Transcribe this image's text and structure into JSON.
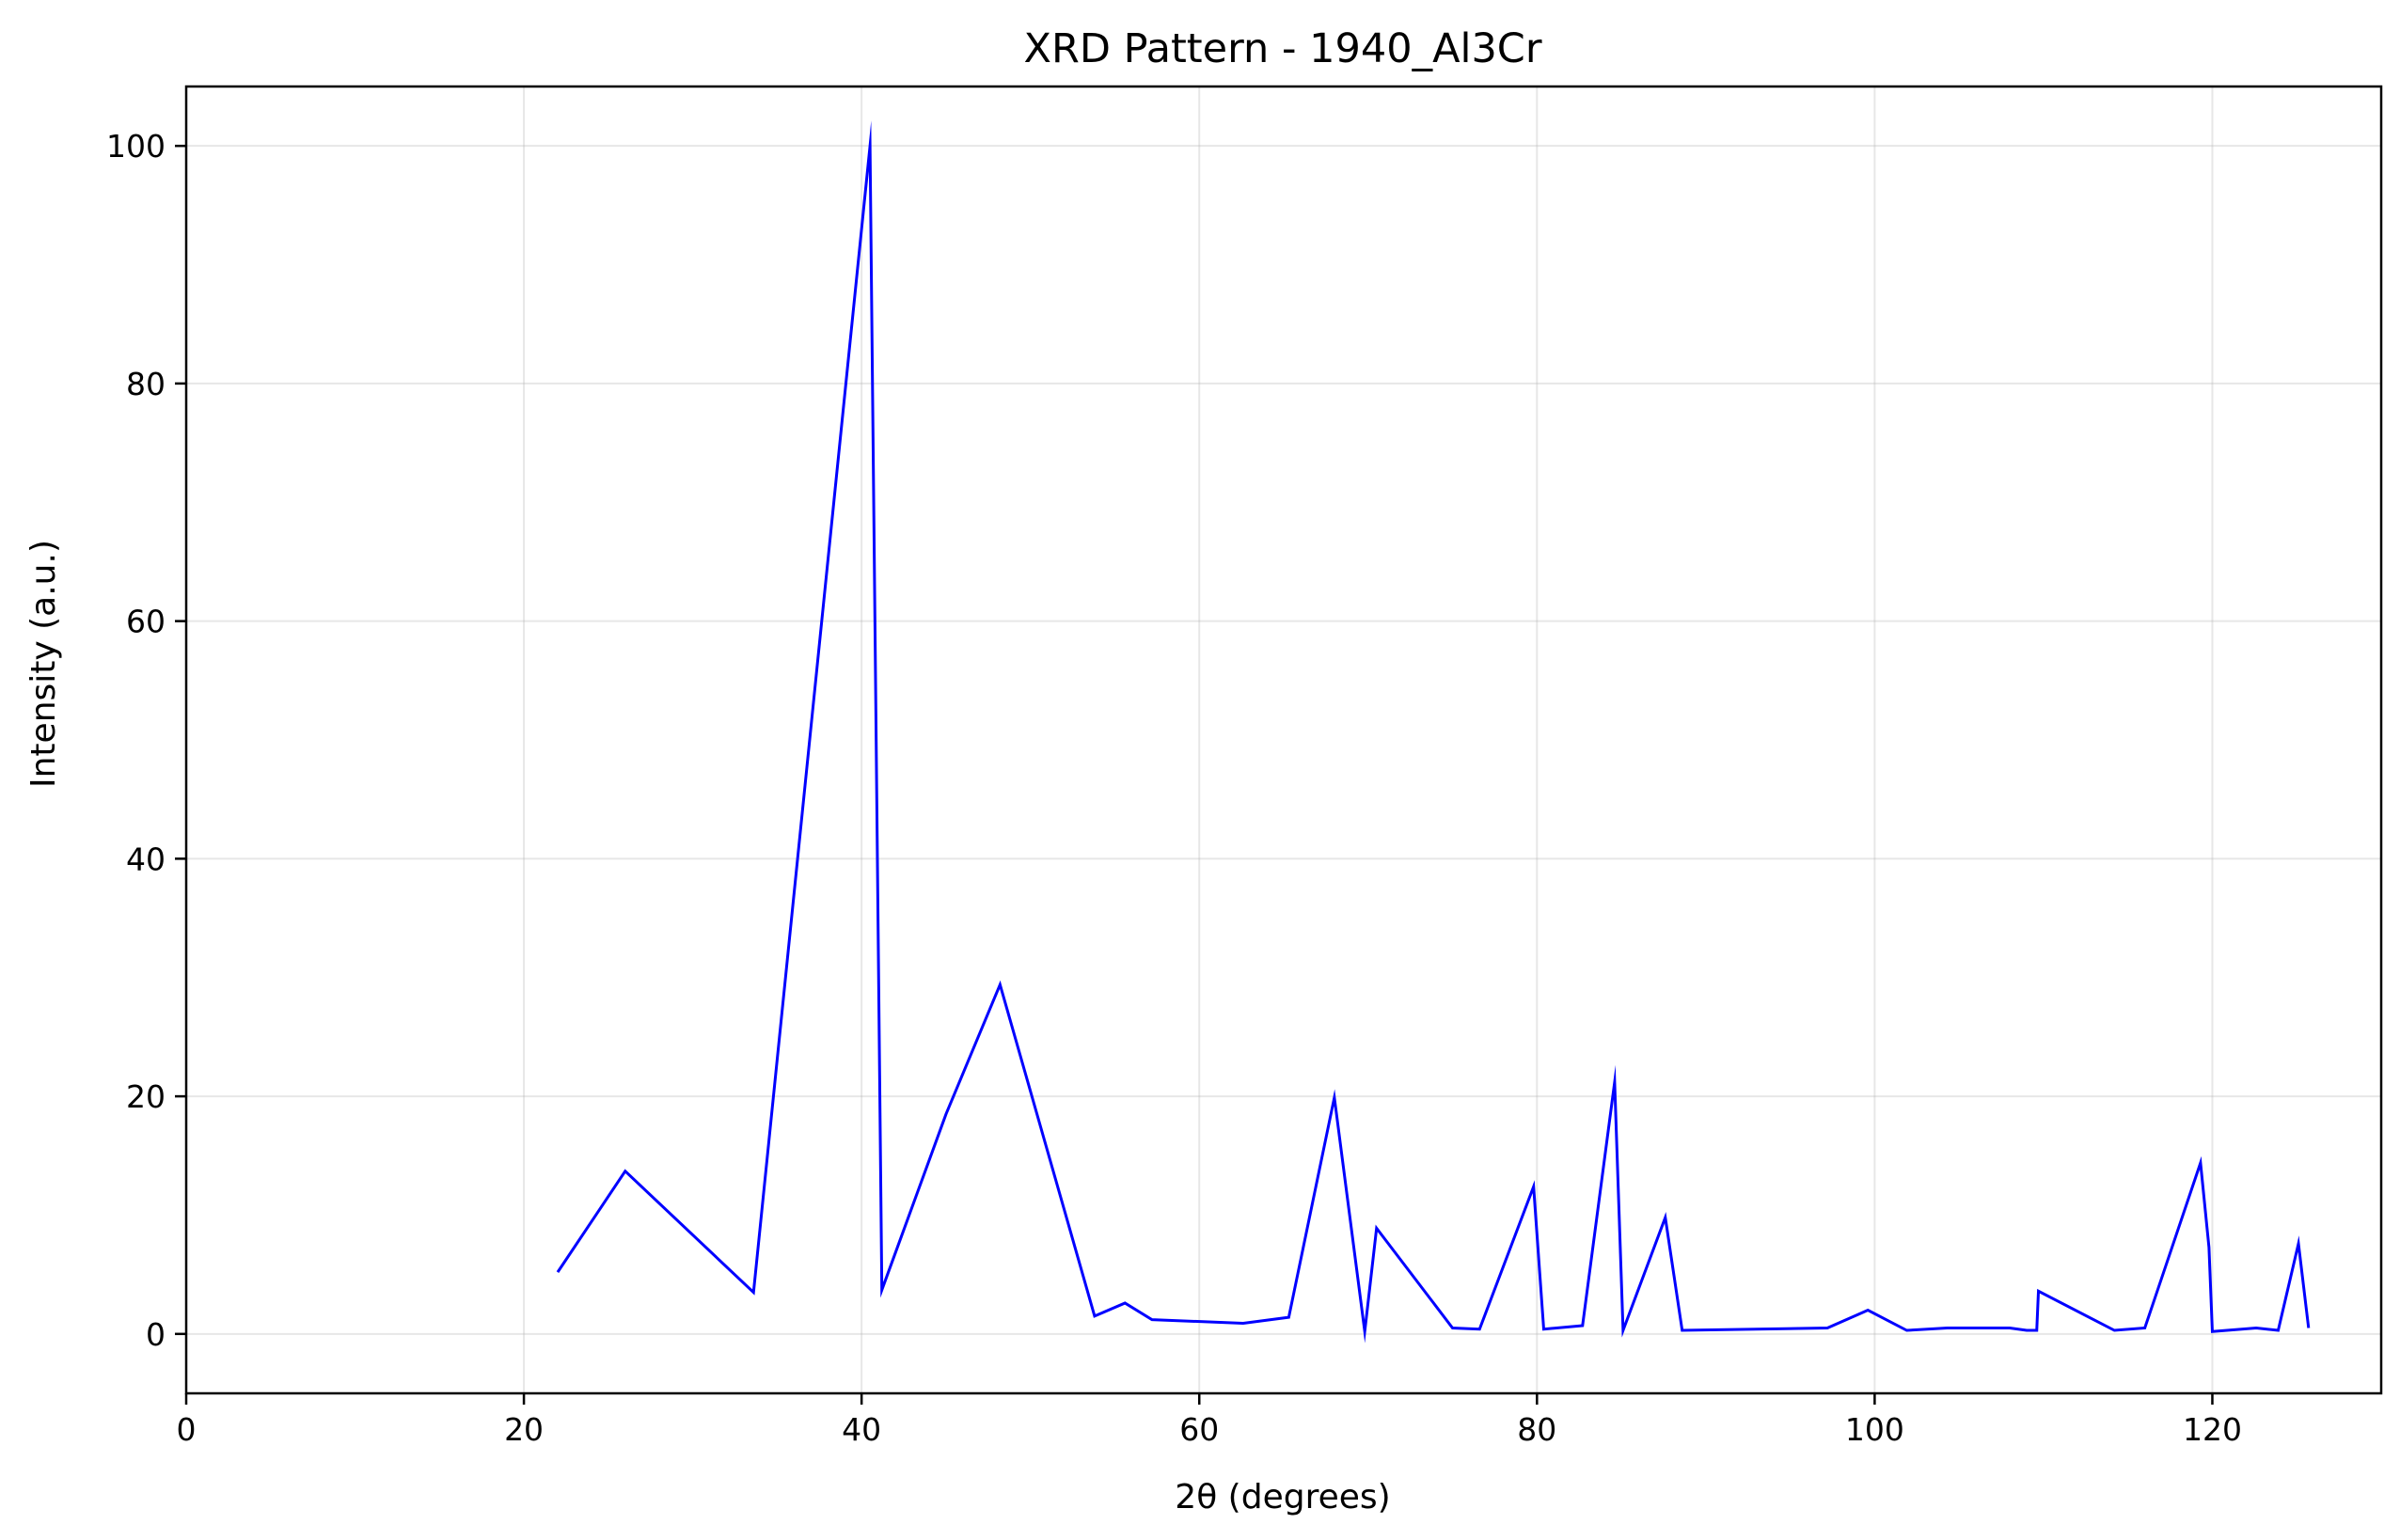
{
  "chart_data": {
    "type": "line",
    "title": "XRD Pattern - 1940_Al3Cr",
    "xlabel": "2θ (degrees)",
    "ylabel": "Intensity (a.u.)",
    "xlim": [
      0,
      130
    ],
    "ylim": [
      -5,
      105
    ],
    "xticks": [
      0,
      20,
      40,
      60,
      80,
      100,
      120
    ],
    "yticks": [
      0,
      20,
      40,
      60,
      80,
      100
    ],
    "grid": true,
    "line_color": "#0000ff",
    "series": [
      {
        "x": [
          22.0,
          26.0,
          33.6,
          40.5,
          41.2,
          45.0,
          48.2,
          53.8,
          55.6,
          57.2,
          62.6,
          65.3,
          68.0,
          69.8,
          70.5,
          75.0,
          76.6,
          79.8,
          80.4,
          82.7,
          84.6,
          85.1,
          87.6,
          88.6,
          97.2,
          99.6,
          101.9,
          104.3,
          108.0,
          109.0,
          109.6,
          109.7,
          114.2,
          116.0,
          119.3,
          119.8,
          120.0,
          122.6,
          123.9,
          125.1,
          125.7
        ],
        "y": [
          5.2,
          13.7,
          3.5,
          100.0,
          3.7,
          18.5,
          29.4,
          1.5,
          2.6,
          1.2,
          0.9,
          1.4,
          19.9,
          0.2,
          8.9,
          0.5,
          0.4,
          12.4,
          0.4,
          0.7,
          21.2,
          0.3,
          9.8,
          0.3,
          0.5,
          2.0,
          0.3,
          0.5,
          0.5,
          0.3,
          0.3,
          3.6,
          0.3,
          0.5,
          14.4,
          7.3,
          0.2,
          0.5,
          0.3,
          7.6,
          0.5
        ]
      }
    ]
  }
}
